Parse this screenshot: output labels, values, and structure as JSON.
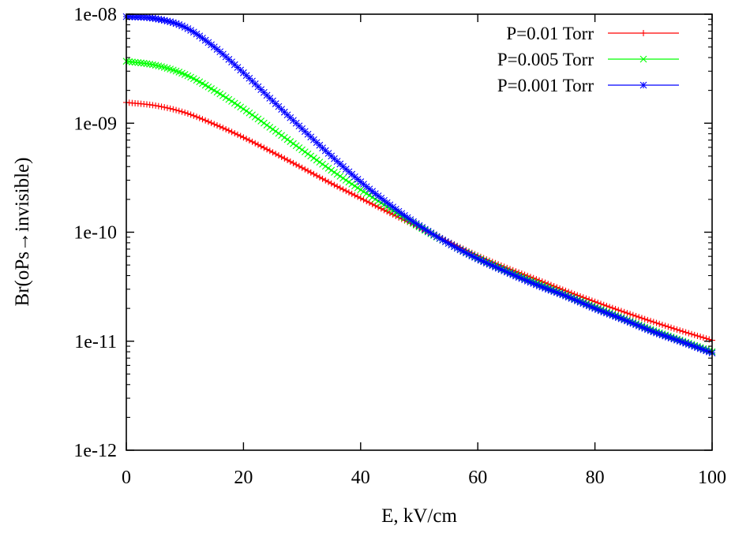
{
  "chart_data": {
    "type": "line",
    "title": "",
    "xlabel": "E, kV/cm",
    "ylabel": "Br(oPs→invisible)",
    "xlim": [
      0,
      100
    ],
    "ylim": [
      1e-12,
      1e-08
    ],
    "yscale": "log",
    "grid": false,
    "legend_position": "top-right",
    "x_ticks": [
      0,
      20,
      40,
      60,
      80,
      100
    ],
    "x_tick_labels": [
      "0",
      "20",
      "40",
      "60",
      "80",
      "100"
    ],
    "y_ticks": [
      1e-12,
      1e-11,
      1e-10,
      1e-09,
      1e-08
    ],
    "y_tick_labels": [
      "1e-12",
      "1e-11",
      "1e-10",
      "1e-09",
      "1e-08"
    ],
    "x": [
      0,
      5,
      10,
      15,
      20,
      25,
      30,
      35,
      40,
      45,
      50,
      55,
      60,
      65,
      70,
      75,
      80,
      85,
      90,
      95,
      100
    ],
    "series": [
      {
        "name": "P=0.01 Torr",
        "color": "#ff0000",
        "marker": "plus",
        "values": [
          1.55e-09,
          1.45e-09,
          1.25e-09,
          9.8e-10,
          7.4e-10,
          5.4e-10,
          3.9e-10,
          2.8e-10,
          2.05e-10,
          1.5e-10,
          1.1e-10,
          8.2e-11,
          6.1e-11,
          4.7e-11,
          3.7e-11,
          2.9e-11,
          2.3e-11,
          1.85e-11,
          1.5e-11,
          1.23e-11,
          1.02e-11
        ]
      },
      {
        "name": "P=0.005 Torr",
        "color": "#00ff00",
        "marker": "cross",
        "values": [
          3.7e-09,
          3.4e-09,
          2.8e-09,
          2e-09,
          1.35e-09,
          8.8e-10,
          5.7e-10,
          3.7e-10,
          2.45e-10,
          1.65e-10,
          1.12e-10,
          7.9e-11,
          5.8e-11,
          4.4e-11,
          3.4e-11,
          2.65e-11,
          2.05e-11,
          1.6e-11,
          1.25e-11,
          1e-11,
          8e-12
        ]
      },
      {
        "name": "P=0.001 Torr",
        "color": "#0000ff",
        "marker": "star",
        "values": [
          9.5e-09,
          9.1e-09,
          7.6e-09,
          5e-09,
          2.9e-09,
          1.6e-09,
          8.9e-10,
          5e-10,
          2.9e-10,
          1.78e-10,
          1.15e-10,
          7.9e-11,
          5.7e-11,
          4.3e-11,
          3.3e-11,
          2.6e-11,
          2e-11,
          1.57e-11,
          1.22e-11,
          9.8e-12,
          7.8e-12
        ]
      }
    ]
  }
}
